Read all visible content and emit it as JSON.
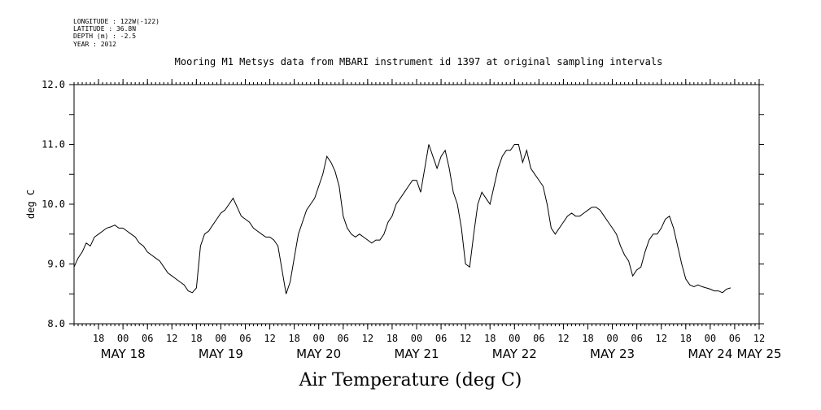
{
  "header": {
    "longitude": "LONGITUDE : 122W(-122)",
    "latitude": "LATITUDE : 36.8N",
    "depth": "DEPTH (m) : -2.5",
    "year": "YEAR : 2012"
  },
  "chart_data": {
    "type": "line",
    "title": "Mooring M1 Metsys data from MBARI instrument id 1397 at original sampling intervals",
    "xlabel": "Air Temperature (deg C)",
    "ylabel": "deg C",
    "ylim": [
      8.0,
      12.0
    ],
    "yticks": [
      "8.0",
      "9.0",
      "10.0",
      "11.0",
      "12.0"
    ],
    "x_unit": "hours since 2012-05-17 12:00",
    "xlim": [
      0,
      168
    ],
    "hour_ticks": [
      "18",
      "00",
      "06",
      "12",
      "18",
      "00",
      "06",
      "12",
      "18",
      "00",
      "06",
      "12",
      "18",
      "00",
      "06",
      "12",
      "18",
      "00",
      "06",
      "12",
      "18",
      "00",
      "06",
      "12",
      "18",
      "00",
      "06",
      "12"
    ],
    "day_labels": [
      {
        "label": "MAY 18",
        "hour": 12
      },
      {
        "label": "MAY 19",
        "hour": 36
      },
      {
        "label": "MAY 20",
        "hour": 60
      },
      {
        "label": "MAY 21",
        "hour": 84
      },
      {
        "label": "MAY 22",
        "hour": 108
      },
      {
        "label": "MAY 23",
        "hour": 132
      },
      {
        "label": "MAY 24",
        "hour": 156
      },
      {
        "label": "MAY 25",
        "hour": 168
      }
    ],
    "grid": false,
    "series": [
      {
        "values": [
          [
            0,
            8.95
          ],
          [
            1,
            9.1
          ],
          [
            2,
            9.2
          ],
          [
            3,
            9.35
          ],
          [
            4,
            9.3
          ],
          [
            5,
            9.45
          ],
          [
            6,
            9.5
          ],
          [
            7,
            9.55
          ],
          [
            8,
            9.6
          ],
          [
            9,
            9.62
          ],
          [
            10,
            9.65
          ],
          [
            11,
            9.6
          ],
          [
            12,
            9.6
          ],
          [
            13,
            9.55
          ],
          [
            14,
            9.5
          ],
          [
            15,
            9.45
          ],
          [
            16,
            9.35
          ],
          [
            17,
            9.3
          ],
          [
            18,
            9.2
          ],
          [
            19,
            9.15
          ],
          [
            20,
            9.1
          ],
          [
            21,
            9.05
          ],
          [
            22,
            8.95
          ],
          [
            23,
            8.85
          ],
          [
            24,
            8.8
          ],
          [
            25,
            8.75
          ],
          [
            26,
            8.7
          ],
          [
            27,
            8.65
          ],
          [
            28,
            8.55
          ],
          [
            29,
            8.52
          ],
          [
            30,
            8.6
          ],
          [
            31,
            9.3
          ],
          [
            32,
            9.5
          ],
          [
            33,
            9.55
          ],
          [
            34,
            9.65
          ],
          [
            35,
            9.75
          ],
          [
            36,
            9.85
          ],
          [
            37,
            9.9
          ],
          [
            38,
            10.0
          ],
          [
            39,
            10.1
          ],
          [
            40,
            9.95
          ],
          [
            41,
            9.8
          ],
          [
            42,
            9.75
          ],
          [
            43,
            9.7
          ],
          [
            44,
            9.6
          ],
          [
            45,
            9.55
          ],
          [
            46,
            9.5
          ],
          [
            47,
            9.45
          ],
          [
            48,
            9.45
          ],
          [
            49,
            9.4
          ],
          [
            50,
            9.3
          ],
          [
            51,
            8.9
          ],
          [
            52,
            8.5
          ],
          [
            53,
            8.7
          ],
          [
            54,
            9.1
          ],
          [
            55,
            9.5
          ],
          [
            56,
            9.7
          ],
          [
            57,
            9.9
          ],
          [
            58,
            10.0
          ],
          [
            59,
            10.1
          ],
          [
            60,
            10.3
          ],
          [
            61,
            10.5
          ],
          [
            62,
            10.8
          ],
          [
            63,
            10.7
          ],
          [
            64,
            10.55
          ],
          [
            65,
            10.3
          ],
          [
            66,
            9.8
          ],
          [
            67,
            9.6
          ],
          [
            68,
            9.5
          ],
          [
            69,
            9.45
          ],
          [
            70,
            9.5
          ],
          [
            71,
            9.45
          ],
          [
            72,
            9.4
          ],
          [
            73,
            9.35
          ],
          [
            74,
            9.4
          ],
          [
            75,
            9.4
          ],
          [
            76,
            9.5
          ],
          [
            77,
            9.7
          ],
          [
            78,
            9.8
          ],
          [
            79,
            10.0
          ],
          [
            80,
            10.1
          ],
          [
            81,
            10.2
          ],
          [
            82,
            10.3
          ],
          [
            83,
            10.4
          ],
          [
            84,
            10.4
          ],
          [
            85,
            10.2
          ],
          [
            86,
            10.6
          ],
          [
            87,
            11.0
          ],
          [
            88,
            10.8
          ],
          [
            89,
            10.6
          ],
          [
            90,
            10.8
          ],
          [
            91,
            10.9
          ],
          [
            92,
            10.6
          ],
          [
            93,
            10.2
          ],
          [
            94,
            10.0
          ],
          [
            95,
            9.6
          ],
          [
            96,
            9.0
          ],
          [
            97,
            8.95
          ],
          [
            98,
            9.5
          ],
          [
            99,
            10.0
          ],
          [
            100,
            10.2
          ],
          [
            101,
            10.1
          ],
          [
            102,
            10.0
          ],
          [
            103,
            10.3
          ],
          [
            104,
            10.6
          ],
          [
            105,
            10.8
          ],
          [
            106,
            10.9
          ],
          [
            107,
            10.9
          ],
          [
            108,
            11.0
          ],
          [
            109,
            11.0
          ],
          [
            110,
            10.7
          ],
          [
            111,
            10.9
          ],
          [
            112,
            10.6
          ],
          [
            113,
            10.5
          ],
          [
            114,
            10.4
          ],
          [
            115,
            10.3
          ],
          [
            116,
            10.0
          ],
          [
            117,
            9.6
          ],
          [
            118,
            9.5
          ],
          [
            119,
            9.6
          ],
          [
            120,
            9.7
          ],
          [
            121,
            9.8
          ],
          [
            122,
            9.85
          ],
          [
            123,
            9.8
          ],
          [
            124,
            9.8
          ],
          [
            125,
            9.85
          ],
          [
            126,
            9.9
          ],
          [
            127,
            9.95
          ],
          [
            128,
            9.95
          ],
          [
            129,
            9.9
          ],
          [
            130,
            9.8
          ],
          [
            131,
            9.7
          ],
          [
            132,
            9.6
          ],
          [
            133,
            9.5
          ],
          [
            134,
            9.3
          ],
          [
            135,
            9.15
          ],
          [
            136,
            9.05
          ],
          [
            137,
            8.8
          ],
          [
            138,
            8.9
          ],
          [
            139,
            8.95
          ],
          [
            140,
            9.2
          ],
          [
            141,
            9.4
          ],
          [
            142,
            9.5
          ],
          [
            143,
            9.5
          ],
          [
            144,
            9.6
          ],
          [
            145,
            9.75
          ],
          [
            146,
            9.8
          ],
          [
            147,
            9.6
          ],
          [
            148,
            9.3
          ],
          [
            149,
            9.0
          ],
          [
            150,
            8.75
          ],
          [
            151,
            8.65
          ],
          [
            152,
            8.62
          ],
          [
            153,
            8.65
          ],
          [
            154,
            8.62
          ],
          [
            155,
            8.6
          ],
          [
            156,
            8.58
          ],
          [
            157,
            8.55
          ],
          [
            158,
            8.55
          ],
          [
            159,
            8.52
          ],
          [
            160,
            8.58
          ],
          [
            161,
            8.6
          ]
        ]
      }
    ]
  }
}
